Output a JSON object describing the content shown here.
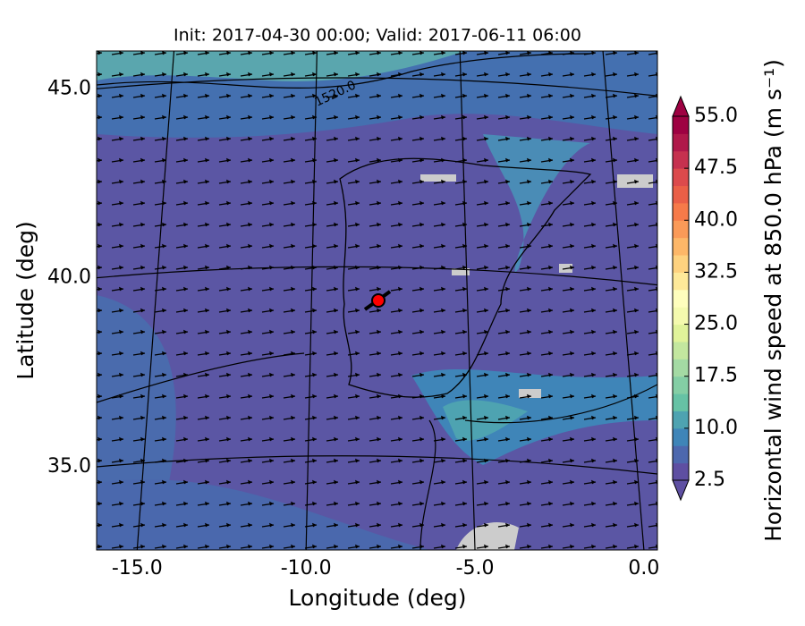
{
  "chart_data": {
    "type": "map",
    "title": "Init: 2017-04-30 00:00; Valid: 2017-06-11 06:00",
    "xlabel": "Longitude (deg)",
    "ylabel": "Latitude (deg)",
    "xlim": [
      -16.2,
      0.4
    ],
    "ylim": [
      32.8,
      46.0
    ],
    "xticks": [
      {
        "value": -15,
        "label": "-15.0"
      },
      {
        "value": -10,
        "label": "-10.0"
      },
      {
        "value": -5,
        "label": "-5.0"
      },
      {
        "value": 0,
        "label": "0.0"
      }
    ],
    "yticks": [
      {
        "value": 35,
        "label": "35.0"
      },
      {
        "value": 40,
        "label": "40.0"
      },
      {
        "value": 45,
        "label": "45.0"
      }
    ],
    "grid": true,
    "annotations": [
      "1520.0"
    ],
    "colorbar": {
      "label": "Horizontal wind speed at 850.0 hPa (m s⁻¹)",
      "lim": [
        2.5,
        55
      ],
      "ticks": [
        2.5,
        {
          "value": 10,
          "label": "10.0"
        },
        17.5,
        {
          "value": 25,
          "label": "25.0"
        },
        32.5,
        {
          "value": 40,
          "label": "40.0"
        },
        47.5,
        {
          "value": 55,
          "label": "55.0"
        }
      ],
      "extend": "both",
      "colors": [
        "#5e4fa2",
        "#4d68ae",
        "#3f85b8",
        "#4ea3b1",
        "#66c2a5",
        "#84cea5",
        "#a4daa4",
        "#c3e79f",
        "#e0f39a",
        "#f4faae",
        "#fefebd",
        "#fee999",
        "#fed27f",
        "#fdb768",
        "#fa9a58",
        "#f67a49",
        "#ea5f47",
        "#dc4a4c",
        "#c6314f",
        "#b0184a",
        "#9e0142"
      ]
    }
  }
}
